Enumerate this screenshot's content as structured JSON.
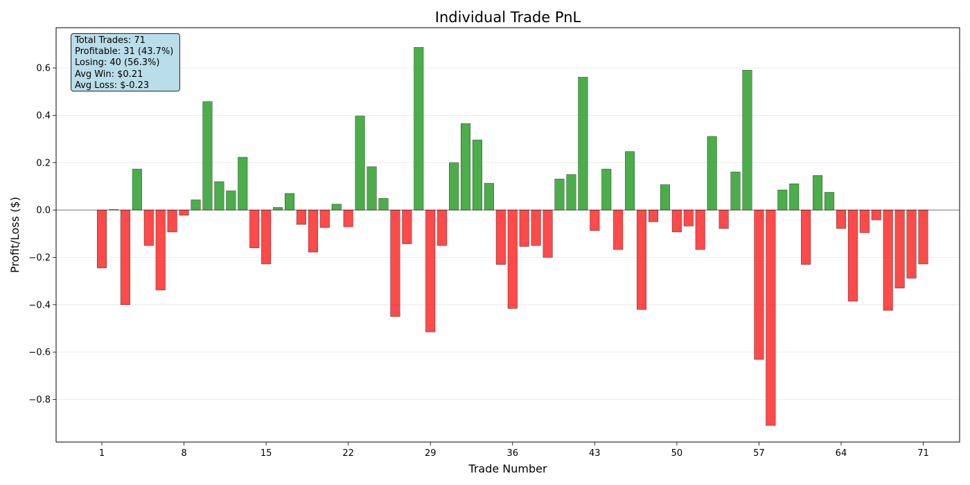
{
  "chart_data": {
    "type": "bar",
    "title": "Individual Trade PnL",
    "xlabel": "Trade Number",
    "ylabel": "Profit/Loss ($)",
    "ylim": [
      -0.98,
      0.77
    ],
    "xlim": [
      -2.9,
      74.1
    ],
    "grid": "y",
    "x": [
      1,
      2,
      3,
      4,
      5,
      6,
      7,
      8,
      9,
      10,
      11,
      12,
      13,
      14,
      15,
      16,
      17,
      18,
      19,
      20,
      21,
      22,
      23,
      24,
      25,
      26,
      27,
      28,
      29,
      30,
      31,
      32,
      33,
      34,
      35,
      36,
      37,
      38,
      39,
      40,
      41,
      42,
      43,
      44,
      45,
      46,
      47,
      48,
      49,
      50,
      51,
      52,
      53,
      54,
      55,
      56,
      57,
      58,
      59,
      60,
      61,
      62,
      63,
      64,
      65,
      66,
      67,
      68,
      69,
      70,
      71
    ],
    "values": [
      -0.245,
      0.002,
      -0.4,
      0.173,
      -0.15,
      -0.338,
      -0.093,
      -0.022,
      0.043,
      0.458,
      0.12,
      0.081,
      0.223,
      -0.16,
      -0.228,
      0.011,
      0.07,
      -0.061,
      -0.178,
      -0.074,
      0.025,
      -0.071,
      0.397,
      0.183,
      0.049,
      -0.45,
      -0.143,
      0.687,
      -0.515,
      -0.15,
      0.2,
      0.365,
      0.296,
      0.113,
      -0.23,
      -0.416,
      -0.154,
      -0.15,
      -0.2,
      0.131,
      0.15,
      0.561,
      -0.087,
      0.173,
      -0.167,
      0.247,
      -0.42,
      -0.05,
      0.107,
      -0.093,
      -0.068,
      -0.167,
      0.311,
      -0.078,
      0.161,
      0.591,
      -0.631,
      -0.91,
      0.085,
      0.111,
      -0.23,
      0.146,
      0.075,
      -0.078,
      -0.385,
      -0.096,
      -0.042,
      -0.424,
      -0.33,
      -0.288,
      -0.228
    ],
    "x_ticks": [
      1,
      8,
      15,
      22,
      29,
      36,
      43,
      50,
      57,
      64,
      71
    ],
    "y_ticks": [
      -0.8,
      -0.6,
      -0.4,
      -0.2,
      0.0,
      0.2,
      0.4,
      0.6
    ],
    "y_tick_labels": [
      "−0.8",
      "−0.6",
      "−0.4",
      "−0.2",
      "0.0",
      "0.2",
      "0.4",
      "0.6"
    ],
    "colors": {
      "profit": "#2ca02c",
      "loss": "#ff2a2a",
      "zero_line": "#000000"
    }
  },
  "stats": {
    "total": "Total Trades: 71",
    "profitable": "Profitable: 31 (43.7%)",
    "losing": "Losing: 40 (56.3%)",
    "avg_win": "Avg Win: $0.21",
    "avg_loss": "Avg Loss: $-0.23"
  }
}
